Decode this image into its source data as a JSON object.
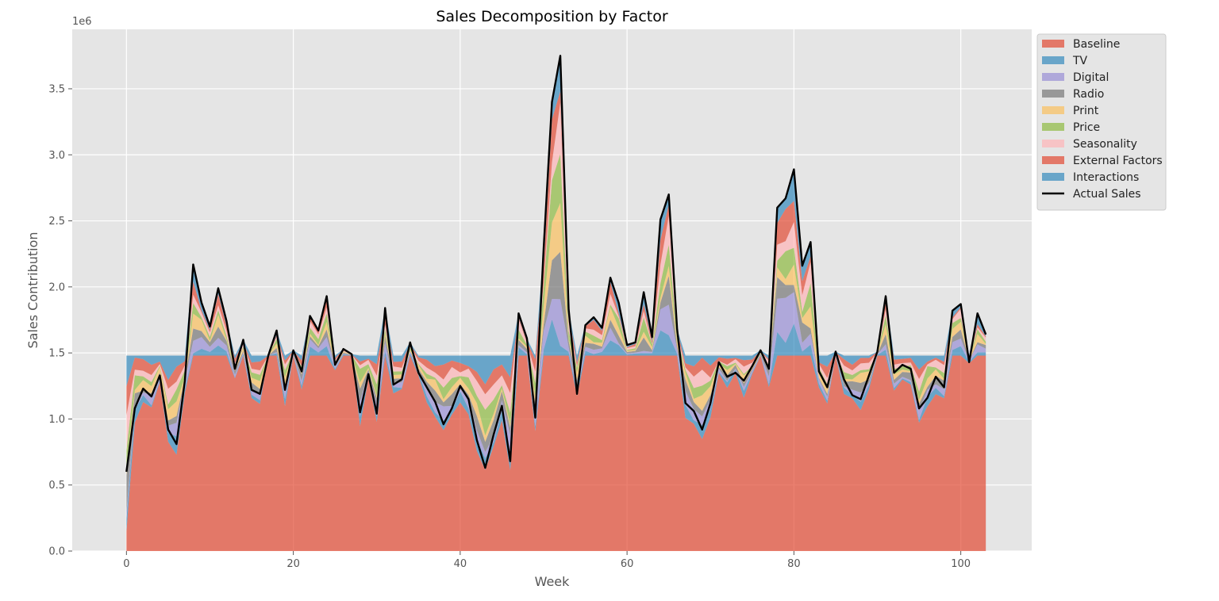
{
  "chart_data": {
    "type": "area",
    "title": "Sales Decomposition by Factor",
    "xlabel": "Week",
    "ylabel": "Sales Contribution",
    "y_offset_label": "1e6",
    "xlim": [
      -6.5,
      108.5
    ],
    "ylim": [
      0,
      3950000
    ],
    "x_ticks": [
      0,
      20,
      40,
      60,
      80,
      100
    ],
    "x_tick_labels": [
      "0",
      "20",
      "40",
      "60",
      "80",
      "100"
    ],
    "y_ticks": [
      0,
      500000,
      1000000,
      1500000,
      2000000,
      2500000,
      3000000,
      3500000
    ],
    "y_tick_labels": [
      "0.0",
      "0.5",
      "1.0",
      "1.5",
      "2.0",
      "2.5",
      "3.0",
      "3.5"
    ],
    "grid": true,
    "legend_position": "outside-top-right",
    "background": "#e5e5e5",
    "baseline_value": 1480000,
    "x": [
      0,
      1,
      2,
      3,
      4,
      5,
      6,
      7,
      8,
      9,
      10,
      11,
      12,
      13,
      14,
      15,
      16,
      17,
      18,
      19,
      20,
      21,
      22,
      23,
      24,
      25,
      26,
      27,
      28,
      29,
      30,
      31,
      32,
      33,
      34,
      35,
      36,
      37,
      38,
      39,
      40,
      41,
      42,
      43,
      44,
      45,
      46,
      47,
      48,
      49,
      50,
      51,
      52,
      53,
      54,
      55,
      56,
      57,
      58,
      59,
      60,
      61,
      62,
      63,
      64,
      65,
      66,
      67,
      68,
      69,
      70,
      71,
      72,
      73,
      74,
      75,
      76,
      77,
      78,
      79,
      80,
      81,
      82,
      83,
      84,
      85,
      86,
      87,
      88,
      89,
      90,
      91,
      92,
      93,
      94,
      95,
      96,
      97,
      98,
      99,
      100,
      101,
      102,
      103
    ],
    "series": [
      {
        "name": "Baseline",
        "color": "#e24a33",
        "type": "area"
      },
      {
        "name": "TV",
        "color": "#348abd",
        "type": "area"
      },
      {
        "name": "Digital",
        "color": "#988ed5",
        "type": "area"
      },
      {
        "name": "Radio",
        "color": "#777777",
        "type": "area"
      },
      {
        "name": "Print",
        "color": "#fbc15e",
        "type": "area"
      },
      {
        "name": "Price",
        "color": "#8eba42",
        "type": "area"
      },
      {
        "name": "Seasonality",
        "color": "#ffb5b8",
        "type": "area"
      },
      {
        "name": "External Factors",
        "color": "#e24a33",
        "type": "area"
      },
      {
        "name": "Interactions",
        "color": "#348abd",
        "type": "area"
      },
      {
        "name": "Actual Sales",
        "color": "#000000",
        "type": "line",
        "values": [
          600000,
          1080000,
          1230000,
          1170000,
          1330000,
          920000,
          810000,
          1290000,
          2170000,
          1880000,
          1700000,
          1990000,
          1740000,
          1380000,
          1600000,
          1220000,
          1190000,
          1480000,
          1670000,
          1220000,
          1520000,
          1360000,
          1780000,
          1670000,
          1930000,
          1410000,
          1530000,
          1490000,
          1050000,
          1340000,
          1040000,
          1840000,
          1260000,
          1300000,
          1580000,
          1350000,
          1240000,
          1130000,
          960000,
          1080000,
          1250000,
          1150000,
          840000,
          630000,
          880000,
          1100000,
          680000,
          1800000,
          1610000,
          1010000,
          2290000,
          3400000,
          3750000,
          1830000,
          1190000,
          1710000,
          1770000,
          1690000,
          2070000,
          1880000,
          1560000,
          1580000,
          1960000,
          1620000,
          2510000,
          2700000,
          1680000,
          1120000,
          1060000,
          920000,
          1120000,
          1430000,
          1320000,
          1350000,
          1290000,
          1400000,
          1520000,
          1380000,
          2600000,
          2670000,
          2890000,
          2160000,
          2340000,
          1360000,
          1240000,
          1510000,
          1300000,
          1180000,
          1150000,
          1330000,
          1510000,
          1930000,
          1350000,
          1410000,
          1380000,
          1080000,
          1160000,
          1320000,
          1240000,
          1820000,
          1870000,
          1430000,
          1800000,
          1640000
        ]
      }
    ]
  }
}
